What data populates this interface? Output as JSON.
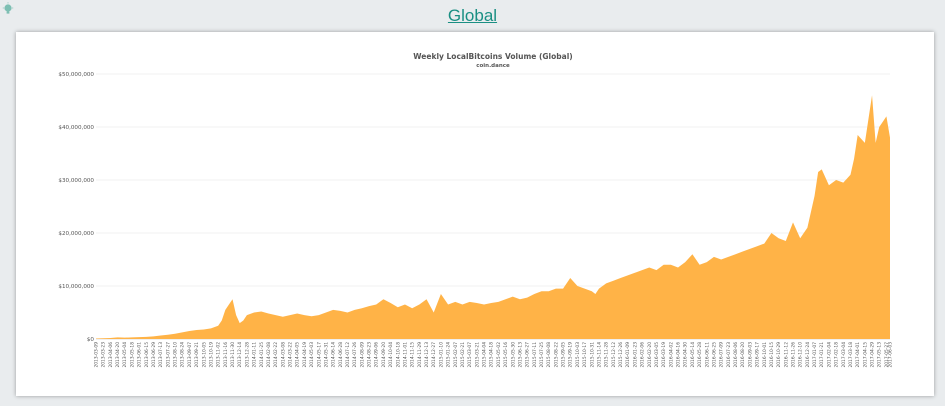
{
  "header": {
    "link_label": "Global",
    "icon": "lightbulb-icon",
    "link_color": "#1a8f83"
  },
  "chart_data": {
    "type": "area",
    "title": "Weekly LocalBitcoins Volume (Global)",
    "subtitle": "coin.dance",
    "xlabel": "",
    "ylabel": "",
    "ylim": [
      0,
      50000000
    ],
    "y_ticks": [
      "$0",
      "$10,000,000",
      "$20,000,000",
      "$30,000,000",
      "$40,000,000",
      "$50,000,000"
    ],
    "grid": true,
    "legend": "none",
    "fill_color": "#ffb347",
    "x_labels": [
      "2013-03-09",
      "2013-03-23",
      "2013-04-06",
      "2013-04-20",
      "2013-05-04",
      "2013-05-18",
      "2013-06-01",
      "2013-06-15",
      "2013-06-29",
      "2013-07-13",
      "2013-07-27",
      "2013-08-10",
      "2013-08-24",
      "2013-09-07",
      "2013-09-21",
      "2013-10-05",
      "2013-10-19",
      "2013-11-02",
      "2013-11-16",
      "2013-11-30",
      "2013-12-14",
      "2013-12-28",
      "2014-01-11",
      "2014-01-25",
      "2014-02-08",
      "2014-02-22",
      "2014-03-08",
      "2014-03-22",
      "2014-04-05",
      "2014-04-19",
      "2014-05-03",
      "2014-05-17",
      "2014-05-31",
      "2014-06-14",
      "2014-06-28",
      "2014-07-12",
      "2014-07-26",
      "2014-08-09",
      "2014-08-23",
      "2014-09-06",
      "2014-09-20",
      "2014-10-04",
      "2014-10-18",
      "2014-11-01",
      "2014-11-15",
      "2014-11-29",
      "2014-12-13",
      "2014-12-27",
      "2015-01-10",
      "2015-01-24",
      "2015-02-07",
      "2015-02-21",
      "2015-03-07",
      "2015-03-21",
      "2015-04-04",
      "2015-04-18",
      "2015-05-02",
      "2015-05-16",
      "2015-05-30",
      "2015-06-13",
      "2015-06-27",
      "2015-07-11",
      "2015-07-25",
      "2015-08-08",
      "2015-08-22",
      "2015-09-05",
      "2015-09-19",
      "2015-10-03",
      "2015-10-17",
      "2015-10-31",
      "2015-11-14",
      "2015-11-28",
      "2015-12-12",
      "2015-12-26",
      "2016-01-09",
      "2016-01-23",
      "2016-02-06",
      "2016-02-20",
      "2016-03-05",
      "2016-03-19",
      "2016-04-02",
      "2016-04-16",
      "2016-04-30",
      "2016-05-14",
      "2016-05-28",
      "2016-06-11",
      "2016-06-25",
      "2016-07-09",
      "2016-07-23",
      "2016-08-06",
      "2016-08-20",
      "2016-09-03",
      "2016-09-17",
      "2016-10-01",
      "2016-10-15",
      "2016-10-29",
      "2016-11-12",
      "2016-11-26",
      "2016-12-10",
      "2016-12-24",
      "2017-01-07",
      "2017-01-21",
      "2017-02-04",
      "2017-02-18",
      "2017-03-04",
      "2017-03-18",
      "2017-04-01",
      "2017-04-15",
      "2017-04-29",
      "2017-05-13",
      "2017-05-27",
      "2017-06-03"
    ],
    "x": [
      "2013-03-09",
      "2013-03-23",
      "2013-04-06",
      "2013-04-20",
      "2013-05-04",
      "2013-05-18",
      "2013-06-01",
      "2013-06-15",
      "2013-06-29",
      "2013-07-13",
      "2013-07-27",
      "2013-08-10",
      "2013-08-24",
      "2013-09-07",
      "2013-09-21",
      "2013-10-05",
      "2013-10-19",
      "2013-11-02",
      "2013-11-09",
      "2013-11-16",
      "2013-11-23",
      "2013-11-30",
      "2013-12-07",
      "2013-12-14",
      "2013-12-21",
      "2013-12-28",
      "2014-01-11",
      "2014-01-25",
      "2014-02-08",
      "2014-02-22",
      "2014-03-08",
      "2014-03-22",
      "2014-04-05",
      "2014-04-19",
      "2014-05-03",
      "2014-05-17",
      "2014-05-31",
      "2014-06-14",
      "2014-06-28",
      "2014-07-12",
      "2014-07-26",
      "2014-08-09",
      "2014-08-23",
      "2014-09-06",
      "2014-09-20",
      "2014-10-04",
      "2014-10-18",
      "2014-11-01",
      "2014-11-15",
      "2014-11-29",
      "2014-12-13",
      "2014-12-27",
      "2015-01-10",
      "2015-01-24",
      "2015-02-07",
      "2015-02-21",
      "2015-03-07",
      "2015-03-21",
      "2015-04-04",
      "2015-04-18",
      "2015-05-02",
      "2015-05-16",
      "2015-05-30",
      "2015-06-13",
      "2015-06-27",
      "2015-07-11",
      "2015-07-25",
      "2015-08-08",
      "2015-08-22",
      "2015-09-05",
      "2015-09-19",
      "2015-10-03",
      "2015-10-17",
      "2015-10-31",
      "2015-11-07",
      "2015-11-14",
      "2015-11-28",
      "2015-12-12",
      "2015-12-26",
      "2016-01-09",
      "2016-01-23",
      "2016-02-06",
      "2016-02-20",
      "2016-03-05",
      "2016-03-19",
      "2016-04-02",
      "2016-04-16",
      "2016-04-30",
      "2016-05-14",
      "2016-05-28",
      "2016-06-11",
      "2016-06-18",
      "2016-06-25",
      "2016-07-09",
      "2016-07-23",
      "2016-08-06",
      "2016-08-20",
      "2016-09-03",
      "2016-09-17",
      "2016-10-01",
      "2016-10-15",
      "2016-10-29",
      "2016-11-12",
      "2016-11-26",
      "2016-12-10",
      "2016-12-24",
      "2017-01-07",
      "2017-01-14",
      "2017-01-21",
      "2017-02-04",
      "2017-02-18",
      "2017-03-04",
      "2017-03-18",
      "2017-03-25",
      "2017-04-01",
      "2017-04-15",
      "2017-04-29",
      "2017-05-06",
      "2017-05-13",
      "2017-05-20",
      "2017-05-27",
      "2017-06-03"
    ],
    "series": [
      {
        "values": [
          100000,
          150000,
          200000,
          300000,
          250000,
          300000,
          350000,
          400000,
          500000,
          650000,
          800000,
          1000000,
          1250000,
          1500000,
          1700000,
          1800000,
          2000000,
          2500000,
          3500000,
          5500000,
          6500000,
          7500000,
          4500000,
          3000000,
          3500000,
          4500000,
          5000000,
          5200000,
          4800000,
          4500000,
          4200000,
          4500000,
          4800000,
          4500000,
          4300000,
          4500000,
          5000000,
          5500000,
          5300000,
          5000000,
          5500000,
          5800000,
          6200000,
          6500000,
          7500000,
          6800000,
          6000000,
          6500000,
          5800000,
          6500000,
          7500000,
          5000000,
          8500000,
          6500000,
          7000000,
          6500000,
          7000000,
          6800000,
          6500000,
          6800000,
          7000000,
          7500000,
          8000000,
          7500000,
          7800000,
          8500000,
          9000000,
          9000000,
          9500000,
          9500000,
          11500000,
          10000000,
          9500000,
          9000000,
          8500000,
          9500000,
          10500000,
          11000000,
          11500000,
          12000000,
          12500000,
          13000000,
          13500000,
          13000000,
          14000000,
          14000000,
          13500000,
          14500000,
          16000000,
          14000000,
          14500000,
          15000000,
          15500000,
          15000000,
          15500000,
          16000000,
          16500000,
          17000000,
          17500000,
          18000000,
          20000000,
          19000000,
          18500000,
          22000000,
          19000000,
          21000000,
          27000000,
          31500000,
          32000000,
          29000000,
          30000000,
          29500000,
          31000000,
          34000000,
          38500000,
          37000000,
          46000000,
          37000000,
          40000000,
          41000000,
          42000000,
          38000000
        ]
      }
    ]
  }
}
